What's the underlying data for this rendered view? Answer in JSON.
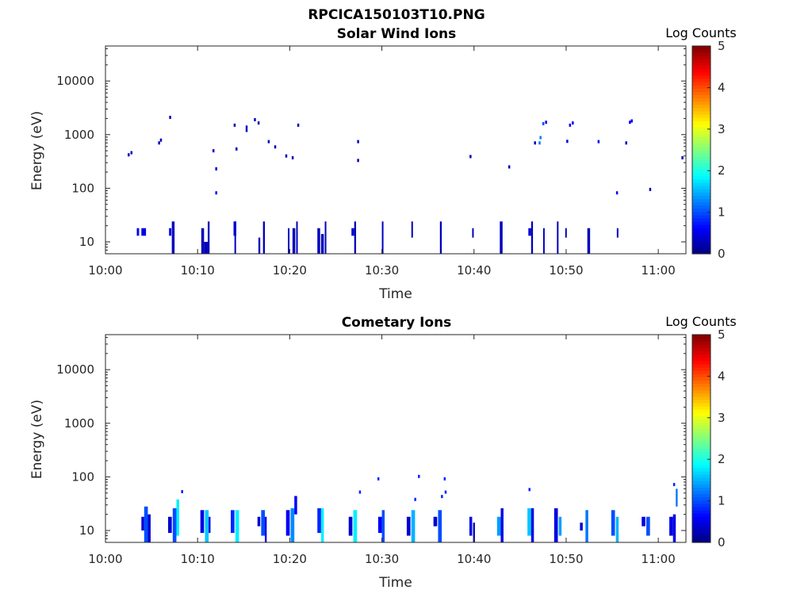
{
  "figure": {
    "title": "RPCICA150103T10.PNG"
  },
  "colors": {
    "axis": "#262626",
    "background": "#ffffff",
    "colormap": [
      "#00007f",
      "#0000ff",
      "#007fff",
      "#00ffff",
      "#7fff7f",
      "#ffff00",
      "#ff7f00",
      "#ff0000",
      "#7f0000"
    ]
  },
  "chart_data": [
    {
      "type": "heatmap",
      "title": "Solar Wind Ions",
      "xlabel": "Time",
      "ylabel": "Energy (eV)",
      "yscale": "log",
      "xlim": [
        "10:00",
        "11:03"
      ],
      "ylim": [
        6,
        45000
      ],
      "x_ticks": [
        "10:00",
        "10:10",
        "10:20",
        "10:30",
        "10:40",
        "10:50",
        "11:00"
      ],
      "y_ticks": [
        "10",
        "100",
        "1000",
        "10000"
      ],
      "colorbar": {
        "label": "Log Counts",
        "range": [
          0,
          5
        ],
        "ticks": [
          "0",
          "1",
          "2",
          "3",
          "4",
          "5"
        ]
      },
      "points": [
        {
          "t": 2.5,
          "e": 420,
          "c": 0.3
        },
        {
          "t": 2.8,
          "e": 460,
          "c": 0.3
        },
        {
          "t": 5.8,
          "e": 700,
          "c": 0.3
        },
        {
          "t": 6.0,
          "e": 790,
          "c": 0.3
        },
        {
          "t": 7.0,
          "e": 2100,
          "c": 0.3
        },
        {
          "t": 11.7,
          "e": 500,
          "c": 0.3
        },
        {
          "t": 12.0,
          "e": 230,
          "c": 0.3
        },
        {
          "t": 12.0,
          "e": 82,
          "c": 0.6
        },
        {
          "t": 14.0,
          "e": 1500,
          "c": 0.3
        },
        {
          "t": 14.2,
          "e": 540,
          "c": 0.3
        },
        {
          "t": 15.3,
          "e": 1200,
          "c": 0.3
        },
        {
          "t": 15.3,
          "e": 1380,
          "c": 0.3
        },
        {
          "t": 16.2,
          "e": 1900,
          "c": 0.3
        },
        {
          "t": 16.6,
          "e": 1650,
          "c": 0.3
        },
        {
          "t": 17.7,
          "e": 740,
          "c": 0.3
        },
        {
          "t": 18.4,
          "e": 590,
          "c": 0.3
        },
        {
          "t": 19.6,
          "e": 400,
          "c": 0.3
        },
        {
          "t": 20.3,
          "e": 370,
          "c": 0.3
        },
        {
          "t": 20.9,
          "e": 1500,
          "c": 0.3
        },
        {
          "t": 27.4,
          "e": 740,
          "c": 0.3
        },
        {
          "t": 27.4,
          "e": 330,
          "c": 0.3
        },
        {
          "t": 39.6,
          "e": 390,
          "c": 0.3
        },
        {
          "t": 43.8,
          "e": 250,
          "c": 0.3
        },
        {
          "t": 46.6,
          "e": 700,
          "c": 0.3
        },
        {
          "t": 47.1,
          "e": 700,
          "c": 1.2
        },
        {
          "t": 47.2,
          "e": 880,
          "c": 1.2
        },
        {
          "t": 47.5,
          "e": 1600,
          "c": 1.0
        },
        {
          "t": 47.8,
          "e": 1700,
          "c": 0.6
        },
        {
          "t": 50.1,
          "e": 750,
          "c": 0.6
        },
        {
          "t": 50.4,
          "e": 1500,
          "c": 0.6
        },
        {
          "t": 50.7,
          "e": 1650,
          "c": 0.6
        },
        {
          "t": 53.5,
          "e": 740,
          "c": 0.6
        },
        {
          "t": 55.5,
          "e": 82,
          "c": 0.6
        },
        {
          "t": 56.5,
          "e": 700,
          "c": 0.3
        },
        {
          "t": 56.9,
          "e": 1700,
          "c": 0.6
        },
        {
          "t": 57.1,
          "e": 1800,
          "c": 0.6
        },
        {
          "t": 59.1,
          "e": 95,
          "c": 0.3
        },
        {
          "t": 62.6,
          "e": 370,
          "c": 0.3
        }
      ],
      "bands": [
        {
          "t": 3.4,
          "w": 0.25,
          "lo": 13,
          "hi": 18,
          "c": 0.5
        },
        {
          "t": 3.9,
          "w": 0.5,
          "lo": 13,
          "hi": 18,
          "c": 0.5
        },
        {
          "t": 7.2,
          "w": 0.3,
          "lo": 6,
          "hi": 24,
          "c": 0.3
        },
        {
          "t": 6.9,
          "w": 0.25,
          "lo": 13,
          "hi": 18,
          "c": 0.5
        },
        {
          "t": 10.4,
          "w": 0.3,
          "lo": 6,
          "hi": 18,
          "c": 0.3
        },
        {
          "t": 10.7,
          "w": 0.4,
          "lo": 6,
          "hi": 10,
          "c": 0.3
        },
        {
          "t": 11.1,
          "w": 0.2,
          "lo": 6,
          "hi": 24,
          "c": 0.3
        },
        {
          "t": 13.9,
          "w": 0.3,
          "lo": 13,
          "hi": 24,
          "c": 0.6
        },
        {
          "t": 14.0,
          "w": 0.15,
          "lo": 6,
          "hi": 24,
          "c": 0.3
        },
        {
          "t": 16.6,
          "w": 0.2,
          "lo": 6,
          "hi": 12,
          "c": 0.3
        },
        {
          "t": 17.1,
          "w": 0.2,
          "lo": 6,
          "hi": 24,
          "c": 0.3
        },
        {
          "t": 19.8,
          "w": 0.15,
          "lo": 6,
          "hi": 18,
          "c": 0.3
        },
        {
          "t": 20.3,
          "w": 0.3,
          "lo": 6,
          "hi": 18,
          "c": 0.3
        },
        {
          "t": 20.7,
          "w": 0.15,
          "lo": 6,
          "hi": 24,
          "c": 0.3
        },
        {
          "t": 23.0,
          "w": 0.3,
          "lo": 6,
          "hi": 18,
          "c": 0.3
        },
        {
          "t": 23.4,
          "w": 0.3,
          "lo": 6,
          "hi": 14,
          "c": 0.3
        },
        {
          "t": 23.8,
          "w": 0.15,
          "lo": 6,
          "hi": 24,
          "c": 0.3
        },
        {
          "t": 26.7,
          "w": 0.3,
          "lo": 13,
          "hi": 18,
          "c": 0.4
        },
        {
          "t": 27.0,
          "w": 0.2,
          "lo": 6,
          "hi": 24,
          "c": 0.3
        },
        {
          "t": 30.0,
          "w": 0.15,
          "lo": 6,
          "hi": 24,
          "c": 0.3
        },
        {
          "t": 33.2,
          "w": 0.15,
          "lo": 12,
          "hi": 24,
          "c": 0.3
        },
        {
          "t": 36.3,
          "w": 0.2,
          "lo": 6,
          "hi": 24,
          "c": 0.3
        },
        {
          "t": 39.8,
          "w": 0.15,
          "lo": 12,
          "hi": 18,
          "c": 0.3
        },
        {
          "t": 42.8,
          "w": 0.3,
          "lo": 6,
          "hi": 24,
          "c": 0.3
        },
        {
          "t": 45.9,
          "w": 0.3,
          "lo": 13,
          "hi": 18,
          "c": 0.4
        },
        {
          "t": 46.2,
          "w": 0.2,
          "lo": 6,
          "hi": 24,
          "c": 0.3
        },
        {
          "t": 49.0,
          "w": 0.15,
          "lo": 6,
          "hi": 24,
          "c": 0.3
        },
        {
          "t": 49.9,
          "w": 0.15,
          "lo": 12,
          "hi": 18,
          "c": 0.3
        },
        {
          "t": 52.3,
          "w": 0.3,
          "lo": 6,
          "hi": 18,
          "c": 0.3
        },
        {
          "t": 55.5,
          "w": 0.15,
          "lo": 12,
          "hi": 18,
          "c": 0.3
        },
        {
          "t": 47.5,
          "w": 0.15,
          "lo": 6,
          "hi": 18,
          "c": 0.3
        }
      ]
    },
    {
      "type": "heatmap",
      "title": "Cometary Ions",
      "xlabel": "Time",
      "ylabel": "Energy (eV)",
      "yscale": "log",
      "xlim": [
        "10:00",
        "11:03"
      ],
      "ylim": [
        6,
        45000
      ],
      "x_ticks": [
        "10:00",
        "10:10",
        "10:20",
        "10:30",
        "10:40",
        "10:50",
        "11:00"
      ],
      "y_ticks": [
        "10",
        "100",
        "1000",
        "10000"
      ],
      "colorbar": {
        "label": "Log Counts",
        "range": [
          0,
          5
        ],
        "ticks": [
          "0",
          "1",
          "2",
          "3",
          "4",
          "5"
        ]
      },
      "points": [
        {
          "t": 8.3,
          "e": 53,
          "c": 0.8
        },
        {
          "t": 27.6,
          "e": 52,
          "c": 0.8
        },
        {
          "t": 29.6,
          "e": 92,
          "c": 0.8
        },
        {
          "t": 34.0,
          "e": 102,
          "c": 0.8
        },
        {
          "t": 36.8,
          "e": 92,
          "c": 0.8
        },
        {
          "t": 36.5,
          "e": 43,
          "c": 0.8
        },
        {
          "t": 36.9,
          "e": 52,
          "c": 0.8
        },
        {
          "t": 33.6,
          "e": 38,
          "c": 0.8
        },
        {
          "t": 46.0,
          "e": 58,
          "c": 0.8
        },
        {
          "t": 61.7,
          "e": 72,
          "c": 0.8
        }
      ],
      "bands": [
        {
          "t": 3.9,
          "w": 0.3,
          "lo": 10,
          "hi": 18,
          "c": 0.4
        },
        {
          "t": 4.2,
          "w": 0.4,
          "lo": 6,
          "hi": 28,
          "c": 1.0
        },
        {
          "t": 4.6,
          "w": 0.3,
          "lo": 6,
          "hi": 20,
          "c": 0.4
        },
        {
          "t": 6.8,
          "w": 0.4,
          "lo": 9,
          "hi": 18,
          "c": 0.4
        },
        {
          "t": 7.3,
          "w": 0.4,
          "lo": 6,
          "hi": 26,
          "c": 1.0
        },
        {
          "t": 7.7,
          "w": 0.3,
          "lo": 8,
          "hi": 38,
          "c": 1.8
        },
        {
          "t": 10.3,
          "w": 0.4,
          "lo": 9,
          "hi": 24,
          "c": 0.5
        },
        {
          "t": 10.8,
          "w": 0.4,
          "lo": 6,
          "hi": 24,
          "c": 1.6
        },
        {
          "t": 11.2,
          "w": 0.2,
          "lo": 9,
          "hi": 18,
          "c": 0.5
        },
        {
          "t": 13.6,
          "w": 0.4,
          "lo": 9,
          "hi": 24,
          "c": 0.8
        },
        {
          "t": 14.1,
          "w": 0.4,
          "lo": 6,
          "hi": 24,
          "c": 1.8
        },
        {
          "t": 16.5,
          "w": 0.3,
          "lo": 12,
          "hi": 18,
          "c": 0.4
        },
        {
          "t": 16.9,
          "w": 0.4,
          "lo": 8,
          "hi": 24,
          "c": 1.0
        },
        {
          "t": 17.3,
          "w": 0.2,
          "lo": 6,
          "hi": 18,
          "c": 0.5
        },
        {
          "t": 19.6,
          "w": 0.4,
          "lo": 8,
          "hi": 24,
          "c": 0.6
        },
        {
          "t": 20.1,
          "w": 0.4,
          "lo": 6,
          "hi": 26,
          "c": 1.3
        },
        {
          "t": 20.5,
          "w": 0.3,
          "lo": 20,
          "hi": 44,
          "c": 0.6
        },
        {
          "t": 23.0,
          "w": 0.4,
          "lo": 9,
          "hi": 26,
          "c": 0.8
        },
        {
          "t": 23.4,
          "w": 0.3,
          "lo": 6,
          "hi": 26,
          "c": 1.8
        },
        {
          "t": 26.4,
          "w": 0.4,
          "lo": 8,
          "hi": 18,
          "c": 0.4
        },
        {
          "t": 26.9,
          "w": 0.4,
          "lo": 6,
          "hi": 24,
          "c": 1.8
        },
        {
          "t": 29.6,
          "w": 0.4,
          "lo": 9,
          "hi": 18,
          "c": 0.6
        },
        {
          "t": 30.0,
          "w": 0.3,
          "lo": 6,
          "hi": 24,
          "c": 1.0
        },
        {
          "t": 32.7,
          "w": 0.4,
          "lo": 8,
          "hi": 18,
          "c": 0.4
        },
        {
          "t": 33.2,
          "w": 0.4,
          "lo": 6,
          "hi": 24,
          "c": 1.5
        },
        {
          "t": 35.6,
          "w": 0.4,
          "lo": 12,
          "hi": 18,
          "c": 0.4
        },
        {
          "t": 36.1,
          "w": 0.4,
          "lo": 6,
          "hi": 24,
          "c": 1.0
        },
        {
          "t": 39.5,
          "w": 0.3,
          "lo": 8,
          "hi": 18,
          "c": 0.5
        },
        {
          "t": 39.9,
          "w": 0.2,
          "lo": 6,
          "hi": 14,
          "c": 0.3
        },
        {
          "t": 42.5,
          "w": 0.4,
          "lo": 8,
          "hi": 18,
          "c": 1.4
        },
        {
          "t": 42.9,
          "w": 0.3,
          "lo": 6,
          "hi": 26,
          "c": 0.5
        },
        {
          "t": 45.8,
          "w": 0.4,
          "lo": 8,
          "hi": 26,
          "c": 1.6
        },
        {
          "t": 46.2,
          "w": 0.3,
          "lo": 6,
          "hi": 26,
          "c": 0.5
        },
        {
          "t": 48.7,
          "w": 0.4,
          "lo": 6,
          "hi": 26,
          "c": 0.5
        },
        {
          "t": 49.2,
          "w": 0.3,
          "lo": 8,
          "hi": 18,
          "c": 1.4
        },
        {
          "t": 51.5,
          "w": 0.3,
          "lo": 10,
          "hi": 14,
          "c": 0.4
        },
        {
          "t": 52.1,
          "w": 0.3,
          "lo": 6,
          "hi": 24,
          "c": 1.2
        },
        {
          "t": 54.9,
          "w": 0.4,
          "lo": 8,
          "hi": 24,
          "c": 1.0
        },
        {
          "t": 55.4,
          "w": 0.3,
          "lo": 6,
          "hi": 18,
          "c": 1.5
        },
        {
          "t": 58.2,
          "w": 0.4,
          "lo": 12,
          "hi": 18,
          "c": 0.5
        },
        {
          "t": 58.7,
          "w": 0.4,
          "lo": 8,
          "hi": 18,
          "c": 1.0
        },
        {
          "t": 61.2,
          "w": 0.4,
          "lo": 8,
          "hi": 18,
          "c": 0.5
        },
        {
          "t": 61.6,
          "w": 0.3,
          "lo": 6,
          "hi": 20,
          "c": 0.5
        },
        {
          "t": 61.9,
          "w": 0.2,
          "lo": 28,
          "hi": 60,
          "c": 1.2
        }
      ]
    }
  ]
}
